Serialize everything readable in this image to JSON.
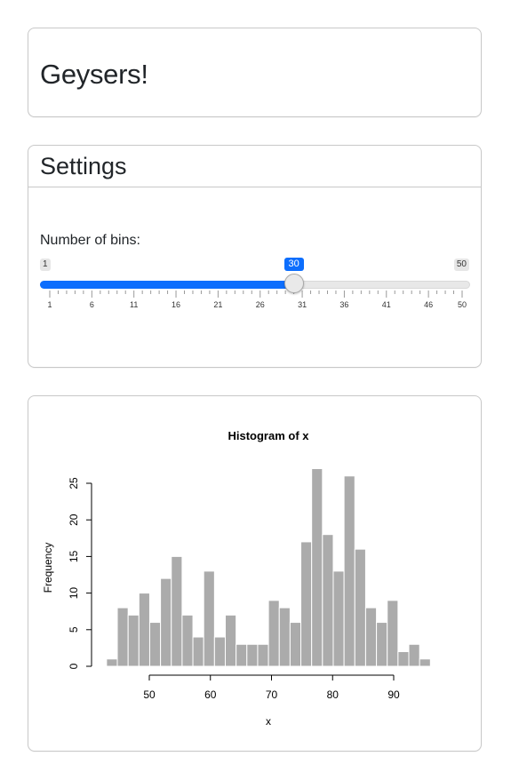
{
  "header": {
    "title": "Geysers!"
  },
  "settings": {
    "title": "Settings",
    "bins_label": "Number of bins:",
    "slider": {
      "min": 1,
      "max": 50,
      "value": 30,
      "min_label": "1",
      "max_label": "50",
      "value_label": "30",
      "tick_labels": [
        "1",
        "6",
        "11",
        "16",
        "21",
        "26",
        "31",
        "36",
        "41",
        "46",
        "50"
      ],
      "accent_color": "#0d6efd"
    }
  },
  "chart_data": {
    "type": "bar",
    "title": "Histogram of x",
    "xlabel": "x",
    "ylabel": "Frequency",
    "bin_start": 43,
    "bin_width": 1.767,
    "bins": 30,
    "values": [
      1,
      8,
      7,
      10,
      6,
      12,
      15,
      7,
      4,
      13,
      4,
      7,
      3,
      3,
      3,
      9,
      8,
      6,
      17,
      27,
      18,
      13,
      26,
      16,
      8,
      6,
      9,
      2,
      3,
      1
    ],
    "xticks": [
      50,
      60,
      70,
      80,
      90
    ],
    "yticks": [
      0,
      5,
      10,
      15,
      20,
      25
    ],
    "bar_color": "#ababab"
  }
}
